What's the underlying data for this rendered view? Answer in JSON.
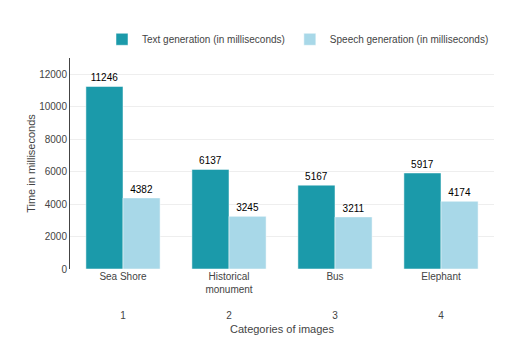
{
  "chart_data": {
    "type": "bar",
    "categories": [
      "Sea Shore",
      "Historical\nmonument",
      "Bus",
      "Elephant"
    ],
    "x_labels": [
      "1",
      "2",
      "3",
      "4"
    ],
    "series": [
      {
        "name": "Text generation (in milliseconds)",
        "color": "#1B9AAA",
        "values": [
          11246,
          6137,
          5167,
          5917
        ]
      },
      {
        "name": "Speech generation (in milliseconds)",
        "color": "#A8D8E8",
        "values": [
          4382,
          3245,
          3211,
          4174
        ]
      }
    ],
    "xlabel": "Categories of images",
    "ylabel": "Time in milliseconds",
    "ylim": [
      0,
      13000
    ],
    "yticks": [
      0,
      2000,
      4000,
      6000,
      8000,
      10000,
      12000
    ],
    "grid": true,
    "legend": "upper right",
    "data_labels": true
  }
}
